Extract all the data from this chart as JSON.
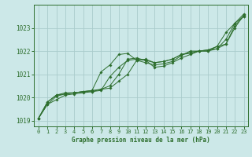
{
  "title": "",
  "xlabel": "Graphe pression niveau de la mer (hPa)",
  "ylabel": "",
  "bg_color": "#cce8e8",
  "grid_color": "#aacccc",
  "line_color": "#2d6e2d",
  "x": [
    0,
    1,
    2,
    3,
    4,
    5,
    6,
    7,
    8,
    9,
    10,
    11,
    12,
    13,
    14,
    15,
    16,
    17,
    18,
    19,
    20,
    21,
    22,
    23
  ],
  "series": [
    [
      1019.1,
      1019.7,
      1019.9,
      1020.1,
      1020.15,
      1020.2,
      1020.25,
      1020.3,
      1020.9,
      1021.3,
      1021.6,
      1021.65,
      1021.6,
      1021.3,
      1021.35,
      1021.5,
      1021.7,
      1021.85,
      1022.0,
      1022.0,
      1022.1,
      1022.3,
      1023.1,
      1023.5
    ],
    [
      1019.1,
      1019.8,
      1020.1,
      1020.2,
      1020.2,
      1020.25,
      1020.3,
      1021.1,
      1021.4,
      1021.85,
      1021.9,
      1021.6,
      1021.5,
      1021.4,
      1021.45,
      1021.55,
      1021.8,
      1022.0,
      1022.0,
      1022.05,
      1022.1,
      1022.5,
      1023.2,
      1023.5
    ],
    [
      1019.1,
      1019.8,
      1020.1,
      1020.15,
      1020.2,
      1020.25,
      1020.25,
      1020.35,
      1020.5,
      1021.0,
      1021.65,
      1021.7,
      1021.6,
      1021.5,
      1021.55,
      1021.65,
      1021.85,
      1021.9,
      1022.0,
      1022.0,
      1022.2,
      1022.8,
      1023.2,
      1023.6
    ],
    [
      1019.1,
      1019.7,
      1020.05,
      1020.15,
      1020.2,
      1020.25,
      1020.3,
      1020.35,
      1020.4,
      1020.7,
      1021.0,
      1021.6,
      1021.65,
      1021.5,
      1021.55,
      1021.65,
      1021.85,
      1021.95,
      1022.0,
      1022.05,
      1022.2,
      1022.3,
      1023.0,
      1023.55
    ]
  ],
  "ylim": [
    1018.75,
    1024.0
  ],
  "yticks": [
    1019,
    1020,
    1021,
    1022,
    1023
  ],
  "xticks": [
    0,
    1,
    2,
    3,
    4,
    5,
    6,
    7,
    8,
    9,
    10,
    11,
    12,
    13,
    14,
    15,
    16,
    17,
    18,
    19,
    20,
    21,
    22,
    23
  ]
}
